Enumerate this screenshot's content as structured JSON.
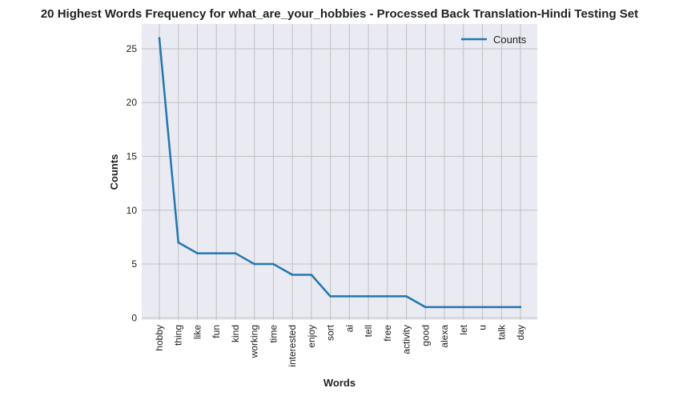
{
  "chart_data": {
    "type": "line",
    "title": "20 Highest Words Frequency for what_are_your_hobbies - Processed Back Translation-Hindi Testing Set",
    "xlabel": "Words",
    "ylabel": "Counts",
    "categories": [
      "hobby",
      "thing",
      "like",
      "fun",
      "kind",
      "working",
      "time",
      "interested",
      "enjoy",
      "sort",
      "ai",
      "tell",
      "free",
      "activity",
      "good",
      "alexa",
      "let",
      "u",
      "talk",
      "day"
    ],
    "series": [
      {
        "name": "Counts",
        "values": [
          26,
          7,
          6,
          6,
          6,
          5,
          5,
          4,
          4,
          2,
          2,
          2,
          2,
          2,
          1,
          1,
          1,
          1,
          1,
          1
        ],
        "color": "#1f77b4"
      }
    ],
    "yticks": [
      0,
      5,
      10,
      15,
      20,
      25
    ],
    "ylim": [
      -0.2,
      27.3
    ],
    "grid": true,
    "legend_position": "top-right",
    "colors": {
      "plot_background": "#eaeaf2",
      "grid": "#c0c0c0",
      "line": "#1f77b4"
    }
  }
}
